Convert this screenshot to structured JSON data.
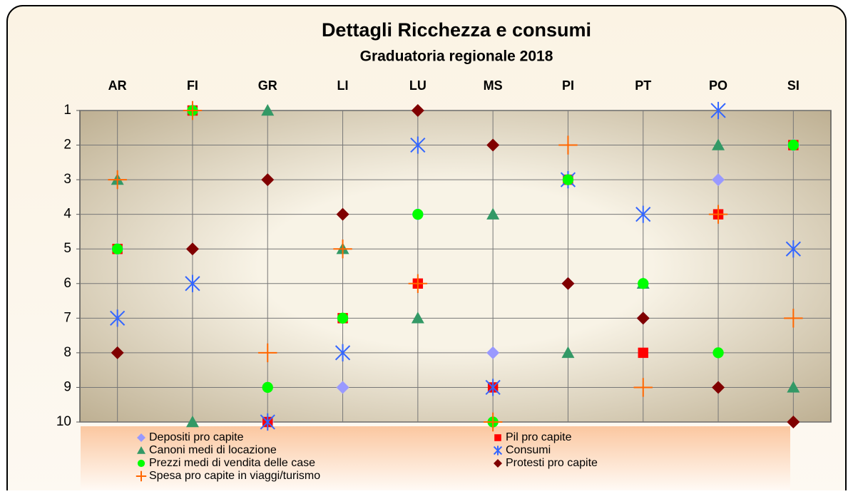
{
  "chart_data": {
    "type": "scatter",
    "title": "Dettagli Ricchezza e consumi",
    "subtitle": "Graduatoria regionale 2018",
    "categories": [
      "AR",
      "FI",
      "GR",
      "LI",
      "LU",
      "MS",
      "PI",
      "PT",
      "PO",
      "SI"
    ],
    "ylim": [
      1,
      10
    ],
    "yticks": [
      1,
      2,
      3,
      4,
      5,
      6,
      7,
      8,
      9,
      10
    ],
    "y_inverted": true,
    "grid": true,
    "series": [
      {
        "name": "Depositi pro capite",
        "color": "#9999ff",
        "marker": "diamond",
        "values": [
          5,
          1,
          10,
          9,
          4,
          8,
          6,
          7,
          3,
          2
        ]
      },
      {
        "name": "Pil pro capite",
        "color": "#ff0000",
        "marker": "square",
        "values": [
          5,
          1,
          10,
          7,
          6,
          9,
          3,
          8,
          4,
          2
        ]
      },
      {
        "name": "Canoni medi di locazione",
        "color": "#339966",
        "marker": "triangle",
        "values": [
          3,
          10,
          1,
          5,
          7,
          4,
          8,
          6,
          2,
          9
        ]
      },
      {
        "name": "Consumi",
        "color": "#3366ff",
        "marker": "star",
        "values": [
          7,
          6,
          10,
          8,
          2,
          9,
          3,
          4,
          1,
          5
        ]
      },
      {
        "name": "Prezzi medi di vendita delle case",
        "color": "#00ff00",
        "marker": "circle",
        "values": [
          5,
          1,
          9,
          7,
          4,
          10,
          3,
          6,
          8,
          2
        ]
      },
      {
        "name": "Protesti pro capite",
        "color": "#800000",
        "marker": "diamond",
        "values": [
          8,
          5,
          3,
          4,
          1,
          2,
          6,
          7,
          9,
          10
        ]
      },
      {
        "name": "Spesa pro capite in viaggi/turismo",
        "color": "#ff6600",
        "marker": "plus",
        "values": [
          3,
          1,
          8,
          5,
          6,
          10,
          2,
          9,
          4,
          7
        ]
      }
    ]
  }
}
